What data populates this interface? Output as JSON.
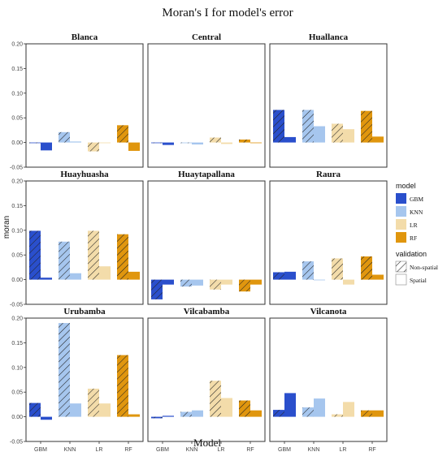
{
  "chart_data": {
    "type": "bar",
    "title": "Moran's I for model's error",
    "xlabel": "Model",
    "ylabel": "moran",
    "categories": [
      "GBM",
      "KNN",
      "LR",
      "RF"
    ],
    "ylim": [
      -0.05,
      0.2
    ],
    "yticks": [
      "-0.05",
      "0.00",
      "0.05",
      "0.10",
      "0.15",
      "0.20"
    ],
    "grid": false,
    "legend": {
      "placement": "right",
      "model_title": "model",
      "model_items": [
        "GBM",
        "KNN",
        "LR",
        "RF"
      ],
      "validation_title": "validation",
      "validation_items": [
        "Non-spatial",
        "Spatial"
      ]
    },
    "colors": {
      "GBM": "#2a4fcc",
      "KNN": "#a6c6ee",
      "LR": "#f3dcaa",
      "RF": "#e0960e"
    },
    "series": [
      {
        "name": "Non-spatial",
        "hatched": true
      },
      {
        "name": "Spatial",
        "hatched": false
      }
    ],
    "panels": [
      {
        "name": "Blanca",
        "nonspatial": [
          0.0,
          0.021,
          -0.018,
          0.035
        ],
        "spatial": [
          -0.016,
          0.002,
          0.0,
          -0.017
        ]
      },
      {
        "name": "Central",
        "nonspatial": [
          0.0,
          0.0,
          0.01,
          0.006
        ],
        "spatial": [
          -0.005,
          -0.004,
          -0.003,
          0.0
        ]
      },
      {
        "name": "Huallanca",
        "nonspatial": [
          0.066,
          0.066,
          0.038,
          0.064
        ],
        "spatial": [
          0.011,
          0.033,
          0.027,
          0.012
        ]
      },
      {
        "name": "Huayhuasha",
        "nonspatial": [
          0.099,
          0.077,
          0.099,
          0.092
        ],
        "spatial": [
          0.004,
          0.013,
          0.027,
          0.016
        ]
      },
      {
        "name": "Huaytapallana",
        "nonspatial": [
          -0.04,
          -0.014,
          -0.02,
          -0.024
        ],
        "spatial": [
          -0.01,
          -0.012,
          -0.01,
          -0.01
        ]
      },
      {
        "name": "Raura",
        "nonspatial": [
          0.015,
          0.037,
          0.043,
          0.047
        ],
        "spatial": [
          0.016,
          0.0,
          -0.01,
          0.01
        ]
      },
      {
        "name": "Urubamba",
        "nonspatial": [
          0.028,
          0.19,
          0.057,
          0.125
        ],
        "spatial": [
          -0.006,
          0.027,
          0.027,
          0.005
        ]
      },
      {
        "name": "Vilcabamba",
        "nonspatial": [
          -0.003,
          0.01,
          0.073,
          0.033
        ],
        "spatial": [
          0.002,
          0.013,
          0.038,
          0.013
        ]
      },
      {
        "name": "Vilcanota",
        "nonspatial": [
          0.014,
          0.019,
          0.005,
          0.013
        ],
        "spatial": [
          0.048,
          0.037,
          0.03,
          0.013
        ]
      }
    ]
  }
}
